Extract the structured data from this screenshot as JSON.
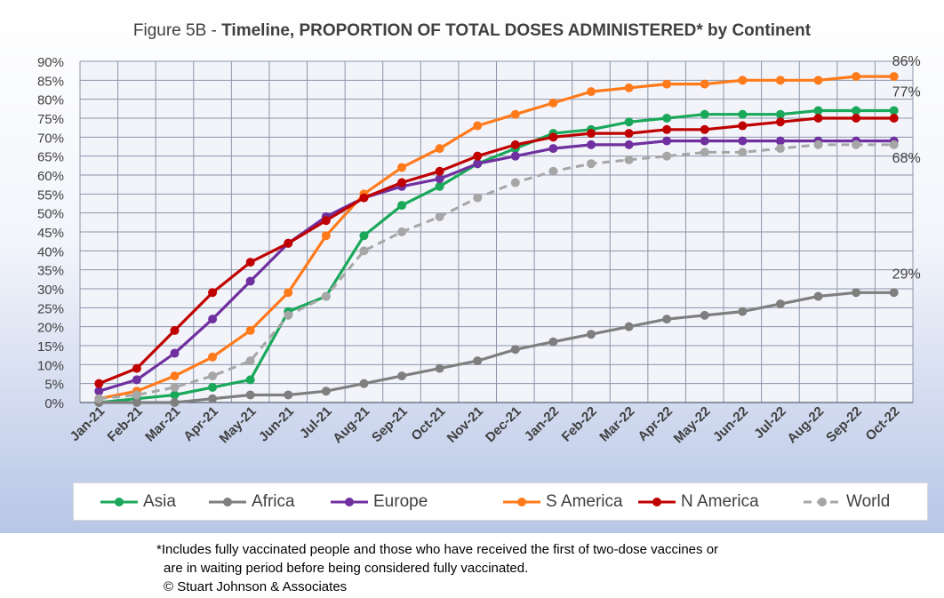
{
  "title_prefix": "Figure 5B - ",
  "title_main": "Timeline, PROPORTION OF TOTAL DOSES ADMINISTERED* by Continent",
  "footnote_line1": "*Includes fully vaccinated people and those who have received the first of two-dose vaccines or",
  "footnote_line2": "are in waiting period before being considered fully vaccinated.",
  "footnote_line3": "© Stuart Johnson & Associates",
  "chart_data": {
    "type": "line",
    "title": "Figure 5B - Timeline, PROPORTION OF TOTAL DOSES ADMINISTERED* by Continent",
    "xlabel": "",
    "ylabel": "",
    "ylim": [
      0,
      90
    ],
    "y_tick_labels": [
      "0%",
      "5%",
      "10%",
      "15%",
      "20%",
      "25%",
      "30%",
      "35%",
      "40%",
      "45%",
      "50%",
      "55%",
      "60%",
      "65%",
      "70%",
      "75%",
      "80%",
      "85%",
      "90%"
    ],
    "categories": [
      "Jan-21",
      "Feb-21",
      "Mar-21",
      "Apr-21",
      "May-21",
      "Jun-21",
      "Jul-21",
      "Aug-21",
      "Sep-21",
      "Oct-21",
      "Nov-21",
      "Dec-21",
      "Jan-22",
      "Feb-22",
      "Mar-22",
      "Apr-22",
      "May-22",
      "Jun-22",
      "Jul-22",
      "Aug-22",
      "Sep-22",
      "Oct-22"
    ],
    "grid": true,
    "legend_position": "bottom",
    "series": [
      {
        "name": "Asia",
        "color": "#1aa85a",
        "dashed": false,
        "values": [
          0,
          1,
          2,
          4,
          6,
          24,
          28,
          44,
          52,
          57,
          63,
          67,
          71,
          72,
          74,
          75,
          76,
          76,
          76,
          77,
          77,
          77
        ]
      },
      {
        "name": "Africa",
        "color": "#7f7f7f",
        "dashed": false,
        "values": [
          0,
          0,
          0,
          1,
          2,
          2,
          3,
          5,
          7,
          9,
          11,
          14,
          16,
          18,
          20,
          22,
          23,
          24,
          26,
          28,
          29,
          29
        ]
      },
      {
        "name": "Europe",
        "color": "#7030a0",
        "dashed": false,
        "values": [
          3,
          6,
          13,
          22,
          32,
          42,
          49,
          54,
          57,
          59,
          63,
          65,
          67,
          68,
          68,
          69,
          69,
          69,
          69,
          69,
          69,
          69
        ]
      },
      {
        "name": "S America",
        "color": "#ff7a1a",
        "dashed": false,
        "values": [
          1,
          3,
          7,
          12,
          19,
          29,
          44,
          55,
          62,
          67,
          73,
          76,
          79,
          82,
          83,
          84,
          84,
          85,
          85,
          85,
          86,
          86
        ]
      },
      {
        "name": "N America",
        "color": "#c00000",
        "dashed": false,
        "values": [
          5,
          9,
          19,
          29,
          37,
          42,
          48,
          54,
          58,
          61,
          65,
          68,
          70,
          71,
          71,
          72,
          72,
          73,
          74,
          75,
          75,
          75
        ]
      },
      {
        "name": "World",
        "color": "#a6a6a6",
        "dashed": true,
        "values": [
          1,
          2,
          4,
          7,
          11,
          23,
          28,
          40,
          45,
          49,
          54,
          58,
          61,
          63,
          64,
          65,
          66,
          66,
          67,
          68,
          68,
          68
        ]
      }
    ],
    "annotations": [
      {
        "text": "86%",
        "series": "S America"
      },
      {
        "text": "77%",
        "series": "Asia"
      },
      {
        "text": "68%",
        "series": "World"
      },
      {
        "text": "29%",
        "series": "Africa"
      }
    ]
  }
}
